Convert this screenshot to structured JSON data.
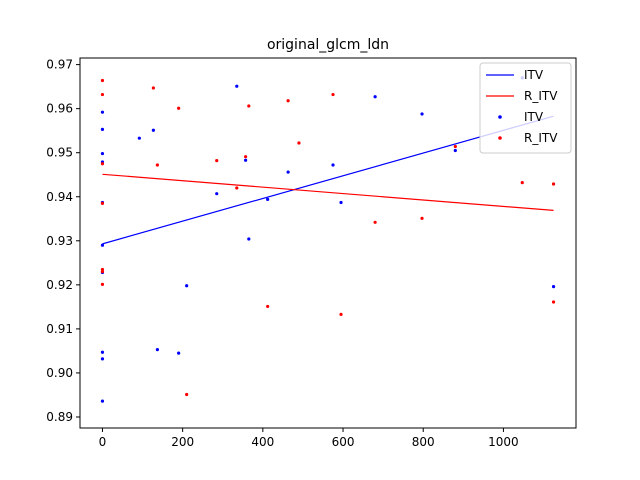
{
  "chart_data": {
    "type": "scatter",
    "title": "original_glcm_ldn",
    "xlabel": "",
    "ylabel": "",
    "xlim": [
      -56,
      1181
    ],
    "ylim": [
      0.8875,
      0.9715
    ],
    "x_ticks": [
      0,
      200,
      400,
      600,
      800,
      1000
    ],
    "x_tick_labels": [
      "0",
      "200",
      "400",
      "600",
      "800",
      "1000"
    ],
    "y_ticks": [
      0.89,
      0.9,
      0.91,
      0.92,
      0.93,
      0.94,
      0.95,
      0.96,
      0.97
    ],
    "y_tick_labels": [
      "0.89",
      "0.90",
      "0.91",
      "0.92",
      "0.93",
      "0.94",
      "0.95",
      "0.96",
      "0.97"
    ],
    "grid": false,
    "legend_position": "top-right",
    "legend": [
      {
        "label": "ITV",
        "kind": "line",
        "color": "#0000ff"
      },
      {
        "label": "R_ITV",
        "kind": "line",
        "color": "#ff0000"
      },
      {
        "label": "ITV",
        "kind": "point",
        "color": "#0000ff"
      },
      {
        "label": "R_ITV",
        "kind": "point",
        "color": "#ff0000"
      }
    ],
    "fit_lines": [
      {
        "series": "ITV",
        "color": "#0000ff",
        "x": [
          0,
          1125
        ],
        "y": [
          0.9293,
          0.9583
        ]
      },
      {
        "series": "R_ITV",
        "color": "#ff0000",
        "x": [
          0,
          1125
        ],
        "y": [
          0.9451,
          0.9369
        ]
      }
    ],
    "series": [
      {
        "name": "ITV",
        "color": "#0000ff",
        "points": [
          [
            0,
            0.9592
          ],
          [
            0,
            0.9553
          ],
          [
            0,
            0.9498
          ],
          [
            0,
            0.9479
          ],
          [
            0,
            0.9387
          ],
          [
            0,
            0.929
          ],
          [
            0,
            0.9228
          ],
          [
            0,
            0.9047
          ],
          [
            0,
            0.9032
          ],
          [
            0,
            0.8936
          ],
          [
            92,
            0.9533
          ],
          [
            127,
            0.9551
          ],
          [
            137,
            0.9053
          ],
          [
            190,
            0.9045
          ],
          [
            210,
            0.9198
          ],
          [
            285,
            0.9407
          ],
          [
            335,
            0.9651
          ],
          [
            357,
            0.9483
          ],
          [
            365,
            0.9304
          ],
          [
            412,
            0.9394
          ],
          [
            463,
            0.9456
          ],
          [
            575,
            0.9472
          ],
          [
            595,
            0.9387
          ],
          [
            680,
            0.9627
          ],
          [
            797,
            0.9588
          ],
          [
            880,
            0.9505
          ],
          [
            1047,
            0.967
          ],
          [
            1125,
            0.9196
          ]
        ]
      },
      {
        "name": "R_ITV",
        "color": "#ff0000",
        "points": [
          [
            0,
            0.9664
          ],
          [
            0,
            0.9632
          ],
          [
            0,
            0.9475
          ],
          [
            0,
            0.9385
          ],
          [
            0,
            0.9235
          ],
          [
            0,
            0.923
          ],
          [
            0,
            0.9201
          ],
          [
            127,
            0.9647
          ],
          [
            137,
            0.9472
          ],
          [
            190,
            0.9601
          ],
          [
            210,
            0.8951
          ],
          [
            285,
            0.9482
          ],
          [
            335,
            0.942
          ],
          [
            357,
            0.9491
          ],
          [
            365,
            0.9606
          ],
          [
            412,
            0.9151
          ],
          [
            463,
            0.9618
          ],
          [
            490,
            0.9522
          ],
          [
            575,
            0.9632
          ],
          [
            595,
            0.9133
          ],
          [
            680,
            0.9342
          ],
          [
            797,
            0.9351
          ],
          [
            880,
            0.9514
          ],
          [
            1047,
            0.9432
          ],
          [
            1125,
            0.9429
          ],
          [
            1125,
            0.9161
          ]
        ]
      }
    ]
  }
}
